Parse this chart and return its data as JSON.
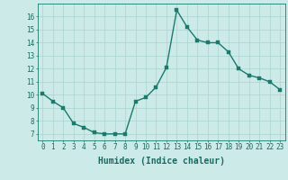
{
  "x": [
    0,
    1,
    2,
    3,
    4,
    5,
    6,
    7,
    8,
    9,
    10,
    11,
    12,
    13,
    14,
    15,
    16,
    17,
    18,
    19,
    20,
    21,
    22,
    23
  ],
  "y": [
    10.1,
    9.5,
    9.0,
    7.8,
    7.5,
    7.1,
    7.0,
    7.0,
    7.0,
    9.5,
    9.8,
    10.6,
    12.1,
    16.5,
    15.2,
    14.2,
    14.0,
    14.0,
    13.3,
    12.0,
    11.5,
    11.3,
    11.0,
    10.4
  ],
  "xlabel": "Humidex (Indice chaleur)",
  "ylim": [
    6.5,
    17.0
  ],
  "xlim": [
    -0.5,
    23.5
  ],
  "yticks": [
    7,
    8,
    9,
    10,
    11,
    12,
    13,
    14,
    15,
    16
  ],
  "xticks": [
    0,
    1,
    2,
    3,
    4,
    5,
    6,
    7,
    8,
    9,
    10,
    11,
    12,
    13,
    14,
    15,
    16,
    17,
    18,
    19,
    20,
    21,
    22,
    23
  ],
  "xtick_labels": [
    "0",
    "1",
    "2",
    "3",
    "4",
    "5",
    "6",
    "7",
    "8",
    "9",
    "10",
    "11",
    "12",
    "13",
    "14",
    "15",
    "16",
    "17",
    "18",
    "19",
    "20",
    "21",
    "22",
    "23"
  ],
  "line_color": "#1a7a6e",
  "marker_color": "#1a7a6e",
  "bg_color": "#cceae7",
  "grid_color": "#aad4d0",
  "axis_color": "#1a7a6e",
  "label_color": "#1a6a60",
  "tick_label_color": "#1a6a60",
  "xlabel_fontsize": 7,
  "tick_fontsize": 5.5,
  "line_width": 1.0,
  "marker_size": 2.2
}
